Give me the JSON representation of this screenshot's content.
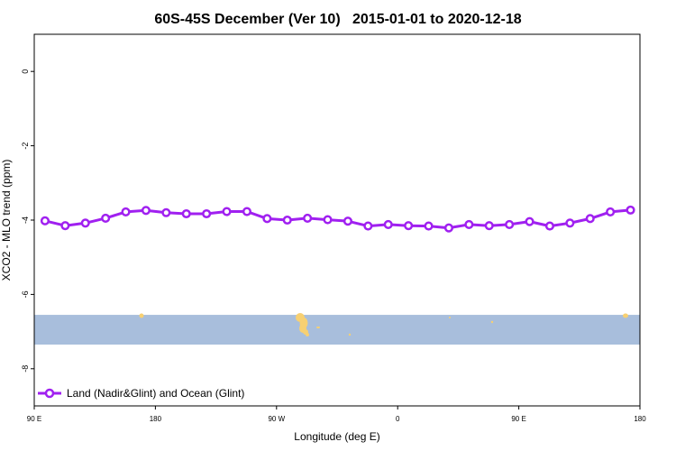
{
  "chart_data": {
    "type": "line",
    "title": "60S-45S December (Ver 10)   2015-01-01 to 2020-12-18",
    "xlabel": "Longitude (deg E)",
    "ylabel": "XCO2 - MLO trend (ppm)",
    "x_tick_labels": [
      "90 E",
      "180",
      "90 W",
      "0",
      "90 E",
      "180"
    ],
    "x_tick_values": [
      90,
      180,
      270,
      360,
      450,
      540
    ],
    "xlim": [
      90,
      540
    ],
    "y_ticks": [
      0,
      -2,
      -4,
      -6,
      -8
    ],
    "ylim": [
      -9,
      1
    ],
    "grid": false,
    "legend_position": "bottom-left",
    "series": [
      {
        "name": "Land (Nadir&Glint) and Ocean (Glint)",
        "color": "#a020f0",
        "x": [
          98,
          113,
          128,
          143,
          158,
          173,
          188,
          203,
          218,
          233,
          248,
          263,
          278,
          293,
          308,
          323,
          338,
          353,
          368,
          383,
          398,
          413,
          428,
          443,
          458,
          473,
          488,
          503,
          518,
          533
        ],
        "values": [
          -4.02,
          -4.15,
          -4.08,
          -3.95,
          -3.78,
          -3.74,
          -3.8,
          -3.83,
          -3.83,
          -3.77,
          -3.77,
          -3.96,
          -4.0,
          -3.95,
          -3.99,
          -4.03,
          -4.16,
          -4.12,
          -4.15,
          -4.16,
          -4.21,
          -4.12,
          -4.15,
          -4.12,
          -4.04,
          -4.16,
          -4.08,
          -3.96,
          -3.78,
          -3.73
        ]
      }
    ],
    "map_strip": {
      "y_range": [
        -7.35,
        -6.55
      ],
      "ocean_color": "#a8bedc",
      "land_color": "#f7d072"
    }
  }
}
